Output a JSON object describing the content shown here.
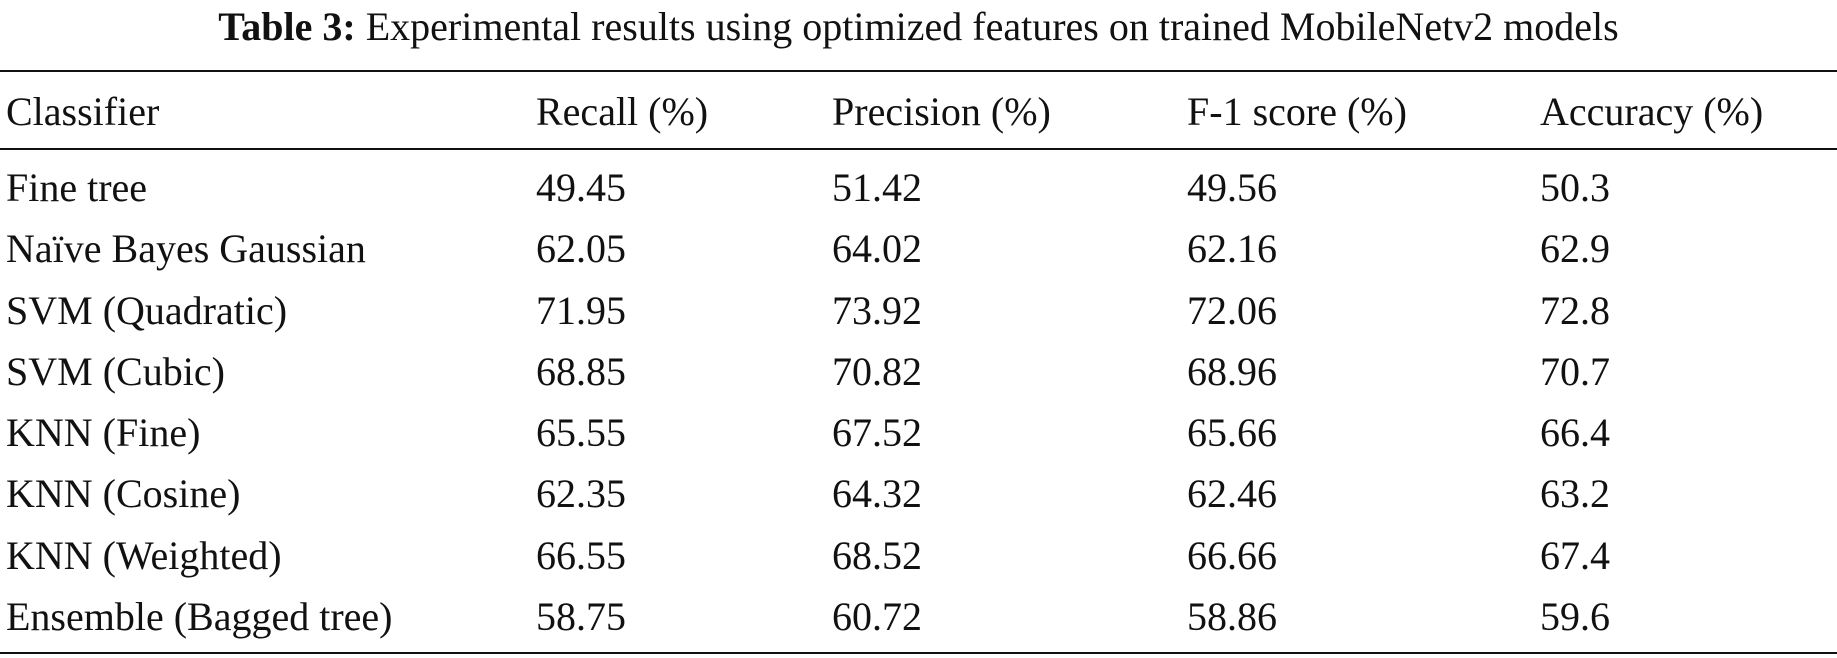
{
  "caption": {
    "label": "Table 3:",
    "text": "Experimental results using optimized features on trained MobileNetv2 models"
  },
  "table": {
    "headers": [
      "Classifier",
      "Recall (%)",
      "Precision (%)",
      "F-1 score (%)",
      "Accuracy (%)"
    ],
    "rows": [
      [
        "Fine tree",
        "49.45",
        "51.42",
        "49.56",
        "50.3"
      ],
      [
        "Naïve Bayes Gaussian",
        "62.05",
        "64.02",
        "62.16",
        "62.9"
      ],
      [
        "SVM (Quadratic)",
        "71.95",
        "73.92",
        "72.06",
        "72.8"
      ],
      [
        "SVM (Cubic)",
        "68.85",
        "70.82",
        "68.96",
        "70.7"
      ],
      [
        "KNN (Fine)",
        "65.55",
        "67.52",
        "65.66",
        "66.4"
      ],
      [
        "KNN (Cosine)",
        "62.35",
        "64.32",
        "62.46",
        "63.2"
      ],
      [
        "KNN (Weighted)",
        "66.55",
        "68.52",
        "66.66",
        "67.4"
      ],
      [
        "Ensemble (Bagged tree)",
        "58.75",
        "60.72",
        "58.86",
        "59.6"
      ]
    ]
  }
}
